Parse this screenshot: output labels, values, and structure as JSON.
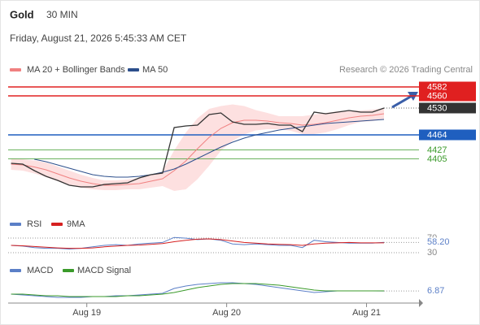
{
  "header": {
    "symbol": "Gold",
    "interval": "30 MIN",
    "datetime": "Friday, August 21, 2026 5:45:33 AM CET",
    "credit": "Research © 2026 Trading Central"
  },
  "chart_data": [
    {
      "type": "line",
      "x": [
        -13,
        -11,
        -9,
        -7,
        -5,
        -3,
        -1,
        1,
        3,
        5,
        7,
        9,
        11,
        13,
        15,
        17,
        19,
        21,
        23,
        25,
        27,
        29,
        31,
        33,
        35,
        37,
        39,
        41,
        43,
        45,
        47,
        49,
        51
      ],
      "xlim": [
        -13.5,
        57
      ],
      "xticks": [
        {
          "value": 0,
          "label": "Aug 19"
        },
        {
          "value": 24,
          "label": "Aug 20"
        },
        {
          "value": 48,
          "label": "Aug 21"
        }
      ],
      "ylim": [
        4286,
        4612
      ],
      "price": {
        "color": "#333333",
        "values": [
          4394,
          4392,
          4376,
          4362,
          4352,
          4340,
          4336,
          4336,
          4342,
          4344,
          4346,
          4358,
          4366,
          4370,
          4482,
          4486,
          4488,
          4514,
          4518,
          4496,
          4490,
          4490,
          4492,
          4488,
          4488,
          4472,
          4520,
          4516,
          4520,
          4524,
          4520,
          4520,
          4530
        ]
      },
      "series": [
        {
          "name": "MA 20 + Bollinger Bands",
          "color": "#f08080",
          "band_color": "#fde0e0",
          "values": [
            4392,
            4390,
            4385,
            4378,
            4368,
            4358,
            4350,
            4344,
            4340,
            4340,
            4342,
            4344,
            4350,
            4356,
            4376,
            4400,
            4430,
            4458,
            4480,
            4494,
            4500,
            4500,
            4498,
            4494,
            4492,
            4488,
            4490,
            4494,
            4500,
            4506,
            4510,
            4512,
            4516
          ],
          "upper": [
            4406,
            4404,
            4401,
            4396,
            4386,
            4376,
            4366,
            4358,
            4352,
            4352,
            4354,
            4358,
            4366,
            4374,
            4426,
            4470,
            4505,
            4528,
            4535,
            4539,
            4535,
            4525,
            4518,
            4510,
            4510,
            4510,
            4514,
            4518,
            4522,
            4524,
            4524,
            4526,
            4530
          ],
          "lower": [
            4378,
            4376,
            4369,
            4360,
            4350,
            4340,
            4334,
            4330,
            4328,
            4328,
            4330,
            4330,
            4334,
            4338,
            4326,
            4330,
            4355,
            4388,
            4425,
            4449,
            4465,
            4475,
            4478,
            4478,
            4474,
            4466,
            4466,
            4470,
            4478,
            4488,
            4496,
            4498,
            4502
          ]
        },
        {
          "name": "MA 50",
          "color": "#2c4f8c",
          "values": [
            null,
            null,
            4404,
            4398,
            4390,
            4382,
            4374,
            4366,
            4362,
            4360,
            4360,
            4362,
            4366,
            4372,
            4380,
            4392,
            4406,
            4420,
            4434,
            4446,
            4456,
            4464,
            4470,
            4476,
            4480,
            4484,
            4488,
            4492,
            4494,
            4496,
            4498,
            4500,
            4502
          ]
        }
      ],
      "levels": [
        {
          "value": 4582,
          "color": "#e02020",
          "box": true
        },
        {
          "value": 4560,
          "color": "#e02020",
          "box": true
        },
        {
          "value": 4464,
          "color": "#1f5fbf",
          "box": true
        },
        {
          "value": 4427,
          "color": "#3a9a2a",
          "box": false
        },
        {
          "value": 4405,
          "color": "#3a9a2a",
          "box": false
        }
      ],
      "last": 4530,
      "last_color": "#333333"
    },
    {
      "type": "line",
      "ylim": [
        21,
        88
      ],
      "yticks": [
        30,
        70
      ],
      "series": [
        {
          "name": "RSI",
          "color": "#5b7fc7",
          "values": [
            50,
            48,
            44,
            42,
            42,
            40,
            42,
            46,
            50,
            52,
            50,
            54,
            56,
            58,
            72,
            70,
            66,
            68,
            64,
            54,
            52,
            54,
            52,
            50,
            50,
            44,
            64,
            60,
            58,
            56,
            56,
            56,
            58.2
          ]
        },
        {
          "name": "9MA",
          "color": "#d62020",
          "values": [
            50,
            49,
            47,
            45,
            43,
            42,
            42,
            43,
            46,
            48,
            50,
            51,
            53,
            55,
            60,
            64,
            67,
            68,
            66,
            62,
            58,
            56,
            54,
            53,
            52,
            50,
            54,
            56,
            57,
            58,
            57,
            57,
            57
          ]
        }
      ],
      "last_label": {
        "value": 58.2,
        "label": "58.20"
      }
    },
    {
      "type": "line",
      "ylim": [
        -7,
        25
      ],
      "series": [
        {
          "name": "MACD",
          "color": "#5b7fc7",
          "values": [
            3,
            2,
            1,
            0,
            -1,
            -1,
            -1,
            0,
            0,
            1,
            1,
            2,
            3,
            4,
            10,
            13,
            15,
            16,
            17,
            17,
            16,
            15,
            13,
            11,
            9,
            7,
            5,
            6,
            7,
            7,
            7,
            7,
            6.87
          ]
        },
        {
          "name": "MACD Signal",
          "color": "#3a9a2a",
          "values": [
            3,
            3,
            2,
            1,
            1,
            0,
            0,
            0,
            0,
            0,
            1,
            1,
            2,
            3,
            5,
            8,
            11,
            13,
            15,
            16,
            16,
            16,
            15,
            14,
            12,
            10,
            8,
            7,
            7,
            7,
            7,
            7,
            7
          ]
        }
      ],
      "last": 6.87
    }
  ]
}
